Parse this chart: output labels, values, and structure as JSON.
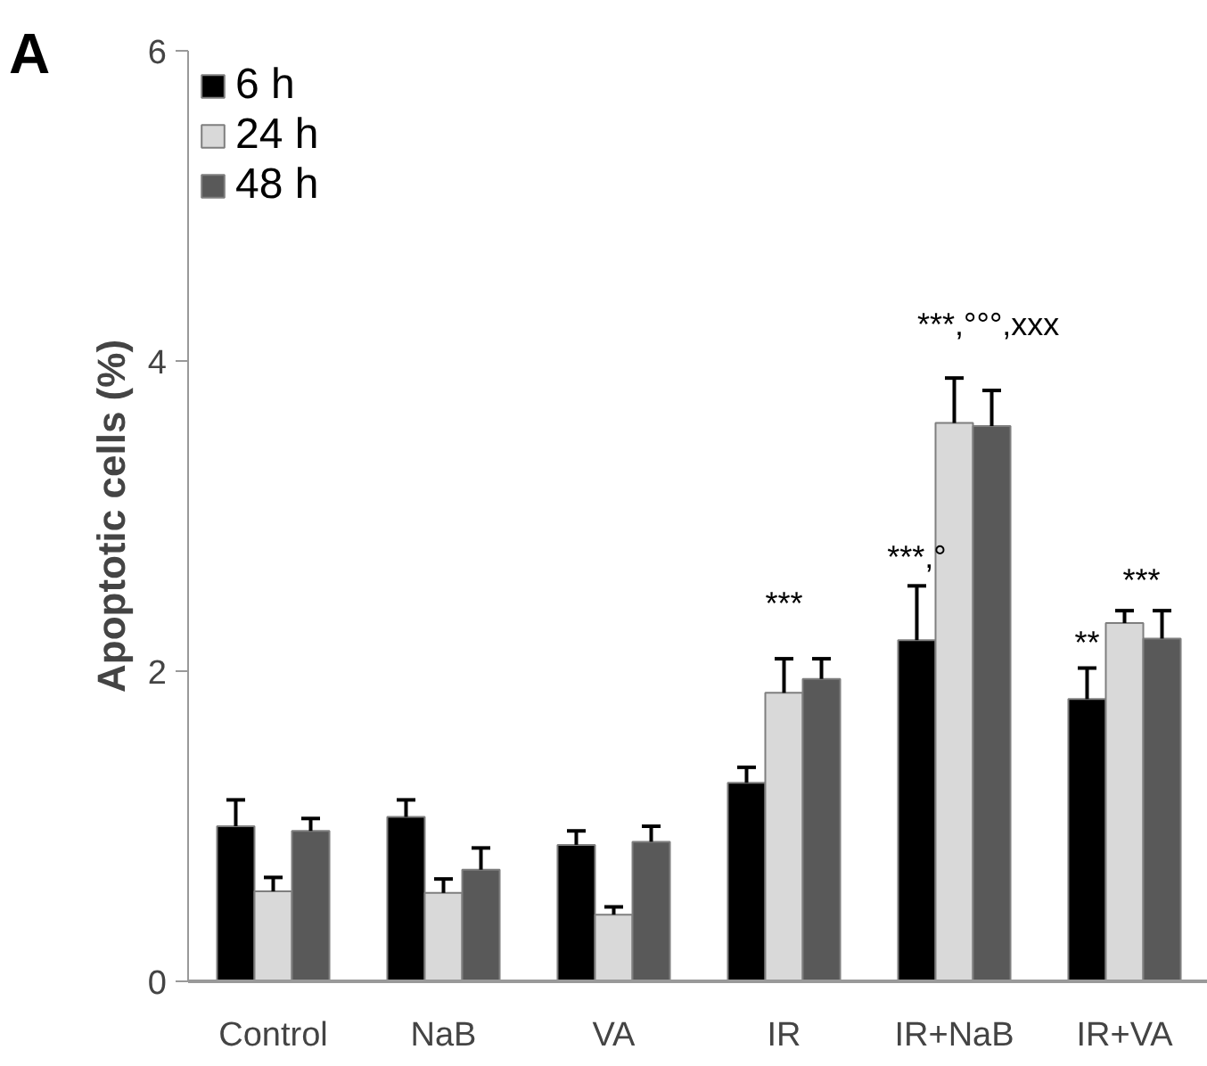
{
  "chart_data": {
    "type": "bar",
    "ylabel": "Apoptotic cells (%)",
    "categories": [
      "Control",
      "NaB",
      "VA",
      "IR",
      "IR+NaB",
      "IR+VA"
    ],
    "series": [
      {
        "name": "6 h",
        "color": "#000000",
        "values": [
          1.0,
          1.06,
          0.88,
          1.28,
          2.2,
          1.82
        ],
        "errors": [
          [
            1.0,
            1.17
          ],
          [
            1.06,
            1.17
          ],
          [
            0.88,
            0.97
          ],
          [
            1.28,
            1.38
          ],
          [
            2.2,
            2.55
          ],
          [
            1.82,
            2.02
          ]
        ]
      },
      {
        "name": "24 h",
        "color": "#d9d9d9",
        "values": [
          0.58,
          0.57,
          0.43,
          1.86,
          3.6,
          2.31
        ],
        "errors": [
          [
            0.58,
            0.67
          ],
          [
            0.57,
            0.66
          ],
          [
            0.43,
            0.48
          ],
          [
            1.86,
            2.08
          ],
          [
            3.6,
            3.89
          ],
          [
            2.31,
            2.39
          ]
        ]
      },
      {
        "name": "48 h",
        "color": "#595959",
        "values": [
          0.97,
          0.72,
          0.9,
          1.95,
          3.58,
          2.21
        ],
        "errors": [
          [
            0.97,
            1.05
          ],
          [
            0.72,
            0.86
          ],
          [
            0.9,
            1.0
          ],
          [
            1.95,
            2.08
          ],
          [
            3.58,
            3.81
          ],
          [
            2.21,
            2.39
          ]
        ]
      }
    ],
    "ylim": [
      0,
      6
    ],
    "yticks": [
      0,
      2,
      4,
      6
    ],
    "grid": false,
    "legend": "top left",
    "annotations": [
      "A",
      "***",
      "***,°",
      "***,°°°,xxx",
      "**",
      "***"
    ]
  }
}
